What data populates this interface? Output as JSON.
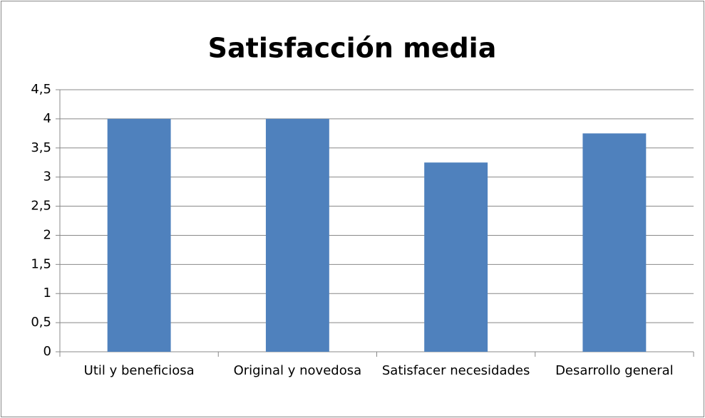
{
  "chart_data": {
    "type": "bar",
    "title": "Satisfacción media",
    "categories": [
      "Util y beneficiosa",
      "Original y novedosa",
      "Satisfacer necesidades",
      "Desarrollo general"
    ],
    "values": [
      4,
      4,
      3.25,
      3.75
    ],
    "color": "#4f81bd",
    "ylim": [
      0,
      4.5
    ],
    "yticks": [
      0,
      {
        "value": 0.5,
        "label": "0,5"
      },
      1,
      {
        "value": 1.5,
        "label": "1,5"
      },
      2,
      {
        "value": 2.5,
        "label": "2,5"
      },
      3,
      {
        "value": 3.5,
        "label": "3,5"
      },
      4,
      {
        "value": 4.5,
        "label": "4,5"
      }
    ],
    "grid": true
  }
}
